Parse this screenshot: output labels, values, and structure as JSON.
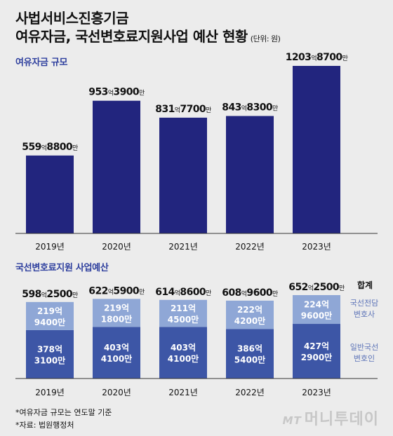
{
  "title_line1": "사법서비스진흥기금",
  "title_line2": "여유자금, 국선변호료지원사업 예산 현황",
  "unit_label": "(단위: 원)",
  "section1_label": "여유자금 규모",
  "section2_label": "국선변호료지원 사업예산",
  "total_label": "합계",
  "top_legend": [
    "국선전담",
    "변호사"
  ],
  "bottom_legend": [
    "일반국선",
    "변호인"
  ],
  "note1": "*여유자금 규모는 연도말 기준",
  "note2": "*자료: 법원행정처",
  "watermark_mt": "MT",
  "watermark_text": "머니투데이",
  "colors": {
    "bar_primary": "#22257e",
    "bar_stack_bottom": "#3d56a6",
    "bar_stack_top": "#8fa7d6",
    "legend_text": "#5d74b8"
  },
  "chart_data": [
    {
      "type": "bar",
      "title": "여유자금 규모",
      "categories": [
        "2019년",
        "2020년",
        "2021년",
        "2022년",
        "2023년"
      ],
      "values": [
        55988000000,
        95339000000,
        83177000000,
        84383000000,
        120387000000
      ],
      "data_labels": [
        {
          "eok": "559",
          "man": "8800"
        },
        {
          "eok": "953",
          "man": "3900"
        },
        {
          "eok": "831",
          "man": "7700"
        },
        {
          "eok": "843",
          "man": "8300"
        },
        {
          "eok": "1203",
          "man": "8700"
        }
      ]
    },
    {
      "type": "bar",
      "stacked": true,
      "title": "국선변호료지원 사업예산",
      "categories": [
        "2019년",
        "2020년",
        "2021년",
        "2022년",
        "2023년"
      ],
      "series": [
        {
          "name": "일반국선 변호인",
          "values": [
            37831000000,
            40341000000,
            40341000000,
            38654000000,
            42729000000
          ],
          "labels": [
            [
              "378억",
              "3100만"
            ],
            [
              "403억",
              "4100만"
            ],
            [
              "403억",
              "4100만"
            ],
            [
              "386억",
              "5400만"
            ],
            [
              "427억",
              "2900만"
            ]
          ]
        },
        {
          "name": "국선전담 변호사",
          "values": [
            21994000000,
            21918000000,
            21145000000,
            22242000000,
            22496000000
          ],
          "labels": [
            [
              "219억",
              "9400만"
            ],
            [
              "219억",
              "1800만"
            ],
            [
              "211억",
              "4500만"
            ],
            [
              "222억",
              "4200만"
            ],
            [
              "224억",
              "9600만"
            ]
          ]
        }
      ],
      "totals": [
        59825000000,
        62259000000,
        61486000000,
        60896000000,
        65225000000
      ],
      "total_labels": [
        {
          "eok": "598",
          "man": "2500"
        },
        {
          "eok": "622",
          "man": "5900"
        },
        {
          "eok": "614",
          "man": "8600"
        },
        {
          "eok": "608",
          "man": "9600"
        },
        {
          "eok": "652",
          "man": "2500"
        }
      ]
    }
  ]
}
